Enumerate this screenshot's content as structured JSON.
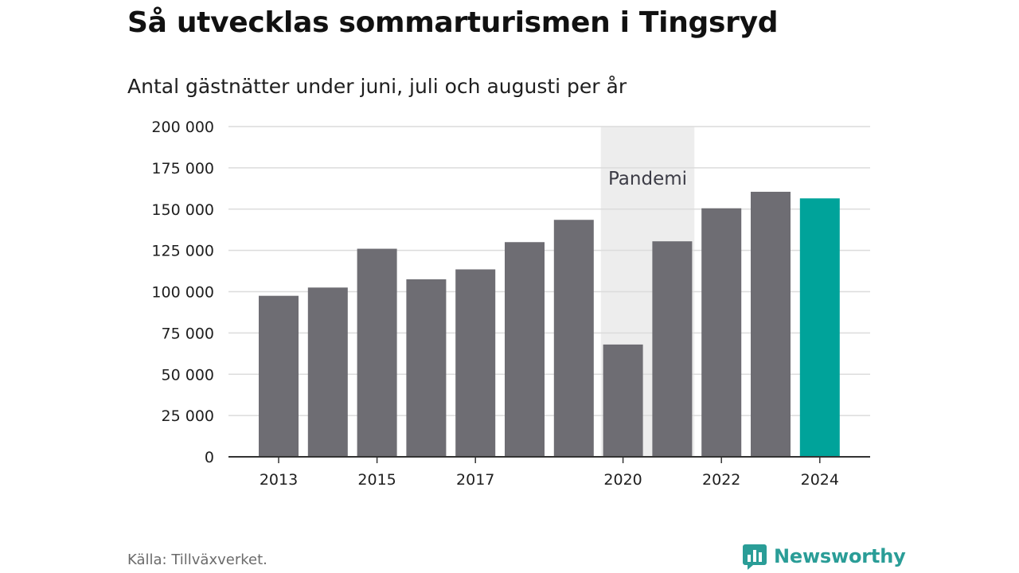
{
  "header": {
    "title": "Så utvecklas sommarturismen i Tingsryd",
    "subtitle": "Antal gästnätter under juni, juli och augusti per år"
  },
  "footer": {
    "source": "Källa: Tillväxverket.",
    "brand": "Newsworthy",
    "brand_icon": "newsworthy-logo-icon"
  },
  "colors": {
    "bar": "#6e6d73",
    "highlight": "#00a39a",
    "grid": "#dcdcdc",
    "band": "#ededed",
    "brand": "#2a9d97"
  },
  "chart_data": {
    "type": "bar",
    "title": "Så utvecklas sommarturismen i Tingsryd",
    "subtitle": "Antal gästnätter under juni, juli och augusti per år",
    "xlabel": "",
    "ylabel": "",
    "categories": [
      "2013",
      "2014",
      "2015",
      "2016",
      "2017",
      "2018",
      "2019",
      "2020",
      "2021",
      "2022",
      "2023",
      "2024"
    ],
    "values": [
      97500,
      102500,
      126000,
      107500,
      113500,
      130000,
      143500,
      68000,
      130500,
      150500,
      160500,
      156500
    ],
    "highlight_category": "2024",
    "ylim": [
      0,
      200000
    ],
    "yticks": [
      0,
      25000,
      50000,
      75000,
      100000,
      125000,
      150000,
      175000,
      200000
    ],
    "ytick_labels": [
      "0",
      "25 000",
      "50 000",
      "75 000",
      "100 000",
      "125 000",
      "150 000",
      "175 000",
      "200 000"
    ],
    "xtick_labels": [
      "2013",
      "2015",
      "2017",
      "2020",
      "2022",
      "2024"
    ],
    "grid": true,
    "legend": "none",
    "annotations": [
      {
        "label": "Pandemi",
        "from": "2020",
        "to": "2021"
      }
    ]
  }
}
